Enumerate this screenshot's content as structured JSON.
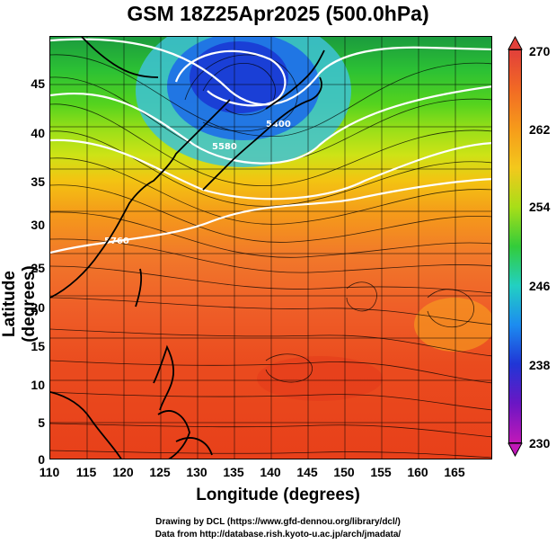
{
  "title": "GSM 18Z25Apr2025 (500.0hPa)",
  "axes": {
    "xlabel": "Longitude (degrees)",
    "ylabel": "Latitude  (degrees)",
    "xticks": [
      "110",
      "115",
      "120",
      "125",
      "130",
      "135",
      "140",
      "145",
      "150",
      "155",
      "160",
      "165"
    ],
    "yticks": [
      "45",
      "40",
      "35",
      "30",
      "25",
      "20",
      "15",
      "10",
      "5",
      "0"
    ],
    "xlim": [
      110,
      170
    ],
    "ylim": [
      0,
      50
    ]
  },
  "colorbar": {
    "labels": [
      "270",
      "262",
      "254",
      "246",
      "238",
      "230"
    ],
    "range": [
      230,
      270
    ],
    "colors": [
      "#e2403a",
      "#f69b1a",
      "#a8de18",
      "#22d0c2",
      "#2036d6",
      "#c018b8"
    ]
  },
  "contours": {
    "labels": [
      "5400",
      "5580",
      "5760"
    ]
  },
  "credits": {
    "line1": "Drawing by DCL (https://www.gfd-dennou.org/library/dcl/)",
    "line2": "Data from http://database.rish.kyoto-u.ac.jp/arch/jmadata/"
  }
}
